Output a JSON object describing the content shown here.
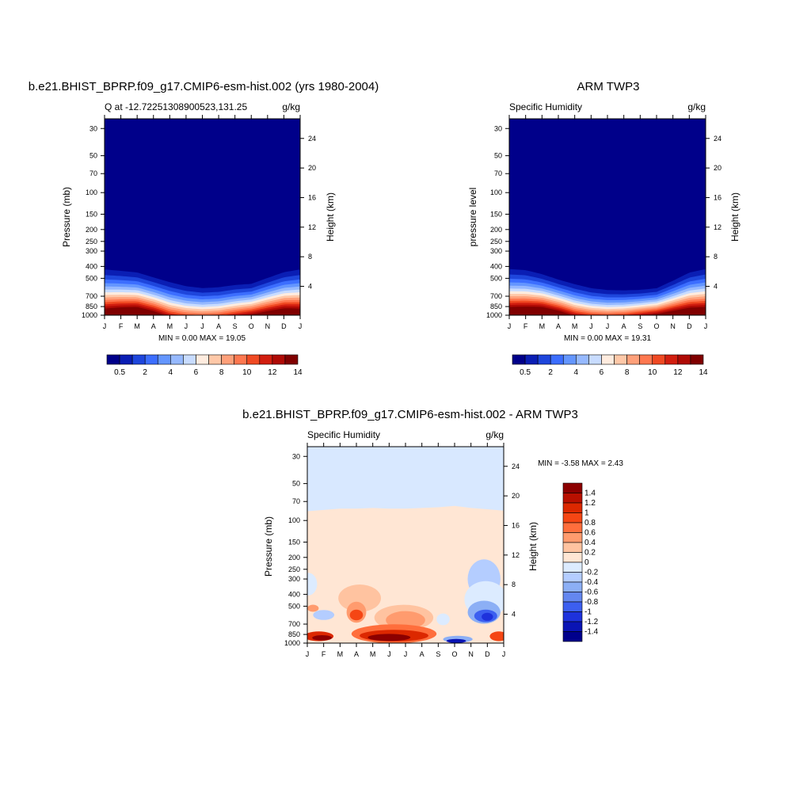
{
  "months": [
    "J",
    "F",
    "M",
    "A",
    "M",
    "J",
    "J",
    "A",
    "S",
    "O",
    "N",
    "D",
    "J"
  ],
  "pressure_ticks": [
    30,
    50,
    70,
    100,
    150,
    200,
    250,
    300,
    400,
    500,
    700,
    850,
    1000
  ],
  "height_ticks": [
    4,
    8,
    12,
    16,
    20,
    24
  ],
  "chart_data": [
    {
      "type": "heatmap",
      "title": "b.e21.BHIST_BPRP.f09_g17.CMIP6-esm-hist.002 (yrs 1980-2004)",
      "subtitle_left": "Q at -12.72251308900523,131.25",
      "subtitle_right": "g/kg",
      "ylabel": "Pressure (mb)",
      "ylabel_right": "Height (km)",
      "stats": "MIN =   0.00 MAX =  19.05",
      "colorbar_labels": [
        "0.5",
        "2",
        "4",
        "6",
        "8",
        "10",
        "12",
        "14"
      ],
      "colorbar_colors": [
        "#00008a",
        "#0a1eb4",
        "#1e46dc",
        "#3c6eff",
        "#6496ff",
        "#96b9ff",
        "#c8dcff",
        "#ffecdf",
        "#ffc8a8",
        "#ffa07a",
        "#ff7850",
        "#f04a23",
        "#d21e0f",
        "#af0a05",
        "#800000"
      ],
      "contour_levels": [
        0.5,
        1,
        2,
        3,
        4,
        5,
        6,
        7,
        8,
        9,
        10,
        11,
        12,
        13,
        14
      ],
      "moist_top_height_km": [
        7.9,
        7.6,
        7.3,
        6.6,
        6.0,
        5.4,
        5.1,
        5.2,
        5.5,
        5.6,
        6.5,
        7.4,
        7.9
      ],
      "surface_q_max": [
        17.5,
        18.5,
        19.0,
        16.5,
        13.0,
        11.5,
        11.0,
        11.5,
        13.0,
        14.5,
        16.5,
        18.0,
        17.5
      ]
    },
    {
      "type": "heatmap",
      "title": "ARM TWP3",
      "subtitle_left": "Specific Humidity",
      "subtitle_right": "g/kg",
      "ylabel": "pressure level",
      "ylabel_right": "Height (km)",
      "stats": "MIN =   0.00 MAX =  19.31",
      "colorbar_labels": [
        "0.5",
        "2",
        "4",
        "6",
        "8",
        "10",
        "12",
        "14"
      ],
      "colorbar_colors": [
        "#00008a",
        "#0a1eb4",
        "#1e46dc",
        "#3c6eff",
        "#6496ff",
        "#96b9ff",
        "#c8dcff",
        "#ffecdf",
        "#ffc8a8",
        "#ffa07a",
        "#ff7850",
        "#f04a23",
        "#d21e0f",
        "#af0a05",
        "#800000"
      ],
      "contour_levels": [
        0.5,
        1,
        2,
        3,
        4,
        5,
        6,
        7,
        8,
        9,
        10,
        11,
        12,
        13,
        14
      ],
      "moist_top_height_km": [
        7.9,
        7.7,
        7.0,
        6.2,
        5.6,
        5.0,
        4.7,
        4.6,
        4.6,
        4.8,
        6.0,
        7.3,
        7.9
      ],
      "surface_q_max": [
        18.5,
        19.0,
        19.3,
        17.0,
        13.5,
        12.0,
        11.5,
        12.0,
        13.5,
        15.0,
        17.0,
        18.5,
        18.5
      ]
    },
    {
      "type": "heatmap",
      "title": "b.e21.BHIST_BPRP.f09_g17.CMIP6-esm-hist.002 - ARM TWP3",
      "subtitle_left": "Specific Humidity",
      "subtitle_right": "g/kg",
      "ylabel": "Pressure (mb)",
      "ylabel_right": "Height (km)",
      "stats": "MIN =  -3.58 MAX =   2.43",
      "colorbar_labels": [
        "1.4",
        "1.2",
        "1",
        "0.8",
        "0.6",
        "0.4",
        "0.2",
        "0",
        "-0.2",
        "-0.4",
        "-0.6",
        "-0.8",
        "-1",
        "-1.2",
        "-1.4"
      ],
      "colorbar_colors": [
        "#8c0000",
        "#b91000",
        "#dc2800",
        "#f54614",
        "#ff6e3c",
        "#ff9b6e",
        "#ffc3a0",
        "#ffe6d4",
        "#dcebff",
        "#b4cdff",
        "#8caff5",
        "#6487f0",
        "#3c5ff0",
        "#1e32dc",
        "#0a14b4",
        "#00008c"
      ]
    }
  ]
}
